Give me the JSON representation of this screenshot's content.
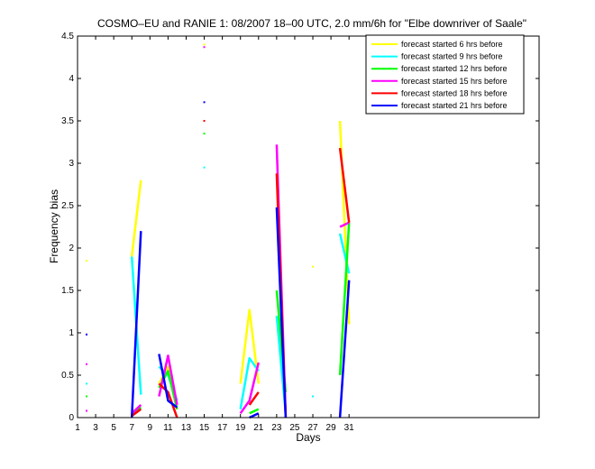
{
  "chart_data": {
    "type": "line",
    "title": "COSMO–EU and RANIE 1: 08/2007 18–00 UTC, 2.0 mm/6h for \"Elbe downriver of Saale\"",
    "xlabel": "Days",
    "ylabel": "Frequency bias",
    "xlim": [
      1,
      52
    ],
    "ylim": [
      0,
      4.5
    ],
    "xticks": [
      1,
      3,
      5,
      7,
      9,
      11,
      13,
      15,
      17,
      19,
      21,
      23,
      25,
      27,
      29,
      31
    ],
    "yticks": [
      0,
      0.5,
      1,
      1.5,
      2,
      2.5,
      3,
      3.5,
      4,
      4.5
    ],
    "grid": false,
    "legend_position": "top-right",
    "series": [
      {
        "name": "forecast started 6 hrs before",
        "color": "#ffff00",
        "segments": [
          [
            [
              2,
              1.85
            ]
          ],
          [
            [
              7,
              1.9
            ],
            [
              8,
              2.8
            ]
          ],
          [
            [
              10,
              0.4
            ],
            [
              11,
              0.6
            ],
            [
              12,
              0.1
            ]
          ],
          [
            [
              15,
              4.4
            ]
          ],
          [
            [
              19,
              0.4
            ],
            [
              20,
              1.27
            ],
            [
              21,
              0.4
            ]
          ],
          [
            [
              23,
              1.2
            ],
            [
              24,
              0.1
            ]
          ],
          [
            [
              27,
              1.78
            ]
          ],
          [
            [
              30,
              3.5
            ],
            [
              31,
              1.1
            ]
          ]
        ]
      },
      {
        "name": "forecast started 9 hrs before",
        "color": "#00ffff",
        "segments": [
          [
            [
              2,
              0.4
            ]
          ],
          [
            [
              7,
              1.9
            ],
            [
              8,
              0.27
            ]
          ],
          [
            [
              10,
              0.6
            ],
            [
              11,
              0.5
            ],
            [
              12,
              0.2
            ]
          ],
          [
            [
              15,
              2.95
            ]
          ],
          [
            [
              19,
              0.1
            ],
            [
              20,
              0.7
            ],
            [
              21,
              0.55
            ]
          ],
          [
            [
              23,
              1.2
            ],
            [
              24,
              0.05
            ]
          ],
          [
            [
              27,
              0.25
            ]
          ],
          [
            [
              30,
              2.17
            ],
            [
              31,
              1.7
            ]
          ]
        ]
      },
      {
        "name": "forecast started 12 hrs before",
        "color": "#00ff00",
        "segments": [
          [
            [
              2,
              0.25
            ]
          ],
          [
            [
              7,
              0.02
            ],
            [
              8,
              0.12
            ]
          ],
          [
            [
              10,
              0.35
            ],
            [
              11,
              0.55
            ],
            [
              12,
              0.1
            ]
          ],
          [
            [
              15,
              3.35
            ]
          ],
          [
            [
              20,
              0.05
            ],
            [
              21,
              0.1
            ]
          ],
          [
            [
              23,
              1.5
            ],
            [
              24,
              0.3
            ]
          ],
          [
            [
              30,
              0.5
            ],
            [
              31,
              2.3
            ]
          ]
        ]
      },
      {
        "name": "forecast started 15 hrs before",
        "color": "#ff00ff",
        "segments": [
          [
            [
              2,
              0.63
            ]
          ],
          [
            [
              2,
              0.08
            ]
          ],
          [
            [
              7,
              0.05
            ],
            [
              8,
              0.15
            ]
          ],
          [
            [
              10,
              0.25
            ],
            [
              11,
              0.73
            ],
            [
              12,
              0.15
            ]
          ],
          [
            [
              15,
              4.37
            ]
          ],
          [
            [
              19,
              0.05
            ],
            [
              20,
              0.2
            ],
            [
              21,
              0.65
            ]
          ],
          [
            [
              23,
              3.22
            ],
            [
              24,
              0.02
            ]
          ],
          [
            [
              30,
              2.25
            ],
            [
              31,
              2.3
            ]
          ]
        ]
      },
      {
        "name": "forecast started 18 hrs before",
        "color": "#ff0000",
        "segments": [
          [
            [
              7,
              0.02
            ],
            [
              8,
              0.1
            ]
          ],
          [
            [
              10,
              0.4
            ],
            [
              11,
              0.3
            ],
            [
              12,
              0.0
            ]
          ],
          [
            [
              15,
              3.5
            ]
          ],
          [
            [
              20,
              0.15
            ],
            [
              21,
              0.3
            ]
          ],
          [
            [
              23,
              2.88
            ],
            [
              24,
              0.0
            ]
          ],
          [
            [
              30,
              3.18
            ],
            [
              31,
              2.3
            ]
          ]
        ]
      },
      {
        "name": "forecast started 21 hrs before",
        "color": "#0000ff",
        "segments": [
          [
            [
              2,
              0.98
            ]
          ],
          [
            [
              7,
              0.0
            ],
            [
              8,
              2.2
            ]
          ],
          [
            [
              10,
              0.75
            ],
            [
              11,
              0.2
            ],
            [
              12,
              0.12
            ]
          ],
          [
            [
              15,
              3.72
            ]
          ],
          [
            [
              20,
              0.0
            ],
            [
              21,
              0.05
            ]
          ],
          [
            [
              23,
              2.48
            ],
            [
              24,
              0.0
            ]
          ],
          [
            [
              30,
              0.0
            ],
            [
              31,
              1.62
            ]
          ]
        ]
      }
    ]
  }
}
